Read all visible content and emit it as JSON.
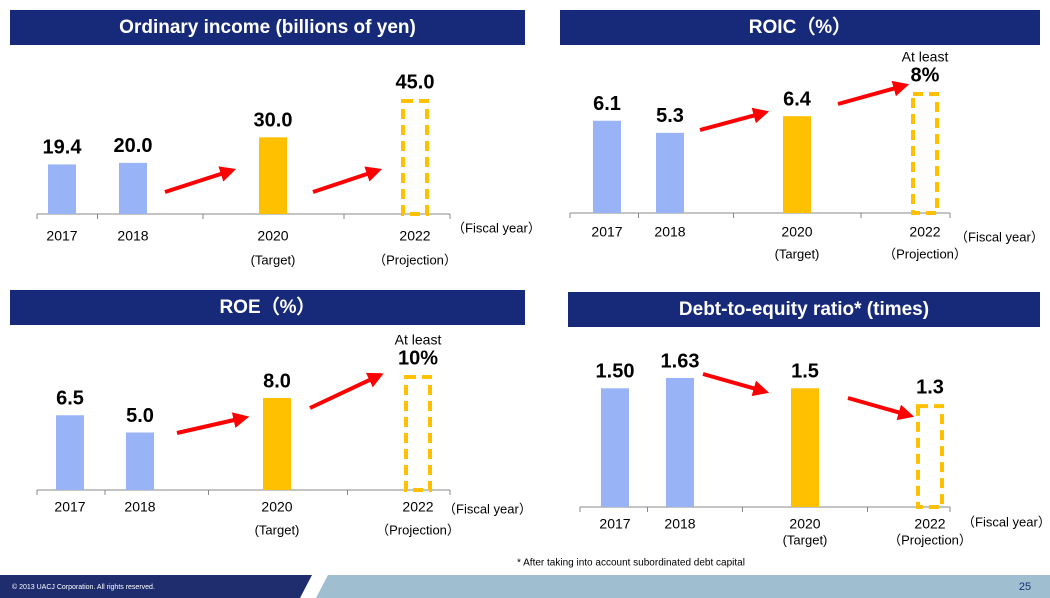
{
  "chart_data": [
    {
      "type": "bar",
      "title": "Ordinary income (billions of yen)",
      "categories": [
        "2017",
        "2018",
        "2020",
        "2022"
      ],
      "category_notes": [
        null,
        null,
        "(Target)",
        "（Projection）"
      ],
      "x_label": "（Fiscal year）",
      "values": [
        19.4,
        20.0,
        30.0,
        45.0
      ],
      "value_labels": [
        "19.4",
        "20.0",
        "30.0",
        "45.0"
      ],
      "value_notes": [
        null,
        null,
        null,
        null
      ],
      "colors": [
        "#99b3f7",
        "#99b3f7",
        "#ffc000",
        "#ffc000"
      ],
      "dashed": [
        false,
        false,
        false,
        true
      ]
    },
    {
      "type": "bar",
      "title": "ROIC（%）",
      "categories": [
        "2017",
        "2018",
        "2020",
        "2022"
      ],
      "category_notes": [
        null,
        null,
        "(Target)",
        "（Projection）"
      ],
      "x_label": "（Fiscal year）",
      "values": [
        6.1,
        5.3,
        6.4,
        8
      ],
      "value_labels": [
        "6.1",
        "5.3",
        "6.4",
        "8%"
      ],
      "value_notes": [
        null,
        null,
        null,
        "At least"
      ],
      "colors": [
        "#99b3f7",
        "#99b3f7",
        "#ffc000",
        "#ffc000"
      ],
      "dashed": [
        false,
        false,
        false,
        true
      ]
    },
    {
      "type": "bar",
      "title": "ROE（%）",
      "categories": [
        "2017",
        "2018",
        "2020",
        "2022"
      ],
      "category_notes": [
        null,
        null,
        "(Target)",
        "（Projection）"
      ],
      "x_label": "（Fiscal year）",
      "values": [
        6.5,
        5.0,
        8.0,
        10
      ],
      "value_labels": [
        "6.5",
        "5.0",
        "8.0",
        "10%"
      ],
      "value_notes": [
        null,
        null,
        null,
        "At least"
      ],
      "colors": [
        "#99b3f7",
        "#99b3f7",
        "#ffc000",
        "#ffc000"
      ],
      "dashed": [
        false,
        false,
        false,
        true
      ]
    },
    {
      "type": "bar",
      "title": "Debt-to-equity ratio* (times)",
      "categories": [
        "2017",
        "2018",
        "2020",
        "2022"
      ],
      "category_notes": [
        null,
        null,
        "(Target)",
        "（Projection）"
      ],
      "x_label": "（Fiscal year）",
      "values": [
        1.5,
        1.63,
        1.5,
        1.3
      ],
      "value_labels": [
        "1.50",
        "1.63",
        "1.5",
        "1.3"
      ],
      "value_notes": [
        null,
        null,
        null,
        null
      ],
      "colors": [
        "#99b3f7",
        "#99b3f7",
        "#ffc000",
        "#ffc000"
      ],
      "dashed": [
        false,
        false,
        false,
        true
      ]
    }
  ],
  "footnote": "* After taking into account subordinated debt capital",
  "footer": {
    "copyright": "© 2013 UACJ Corporation. All rights reserved.",
    "page": "25"
  }
}
